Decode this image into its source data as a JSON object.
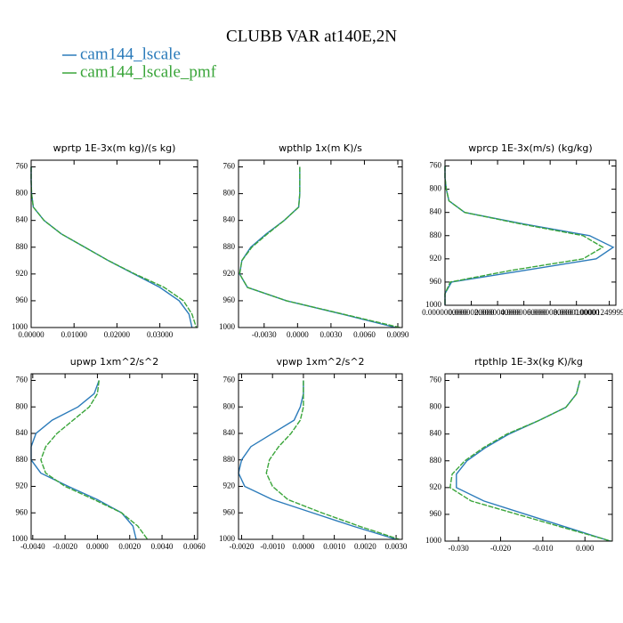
{
  "title": "CLUBB VAR at140E,2N",
  "chart_data": [
    {
      "type": "line",
      "title": "wprtp  1E-3x(m kg)/(s kg)",
      "y": [
        760,
        780,
        800,
        820,
        840,
        860,
        880,
        900,
        920,
        940,
        960,
        980,
        1000
      ],
      "series": [
        {
          "name": "cam144_lscale",
          "color": "#2b7bba",
          "values": [
            0,
            0,
            0.0001,
            0.0005,
            0.003,
            0.007,
            0.0125,
            0.018,
            0.024,
            0.03,
            0.0345,
            0.0368,
            0.0375
          ]
        },
        {
          "name": "cam144_lscale_pmf",
          "color": "#3aa53a",
          "values": [
            0,
            0,
            0.0001,
            0.0005,
            0.003,
            0.007,
            0.0125,
            0.018,
            0.0242,
            0.031,
            0.0355,
            0.0375,
            0.0385
          ]
        }
      ],
      "xlim": [
        0,
        0.0388
      ],
      "ylim": [
        1000,
        750
      ],
      "xticks": [
        {
          "value": 0,
          "label": "0.00000"
        },
        {
          "value": 0.01,
          "label": "0.01000"
        },
        {
          "value": 0.02,
          "label": "0.02000"
        },
        {
          "value": 0.03,
          "label": "0.03000"
        }
      ],
      "yticks": [
        760,
        800,
        840,
        880,
        920,
        960,
        1000
      ]
    },
    {
      "type": "line",
      "title": "wpthlp  1x(m K)/s",
      "y": [
        760,
        780,
        800,
        820,
        840,
        860,
        880,
        900,
        920,
        940,
        960,
        980,
        1000
      ],
      "series": [
        {
          "name": "cam144_lscale",
          "color": "#2b7bba",
          "values": [
            0.0002,
            0.0002,
            0.0002,
            0.0001,
            -0.0012,
            -0.0028,
            -0.0042,
            -0.005,
            -0.0052,
            -0.0045,
            -0.001,
            0.004,
            0.0088
          ]
        },
        {
          "name": "cam144_lscale_pmf",
          "color": "#3aa53a",
          "values": [
            0.0002,
            0.0002,
            0.0002,
            0.0001,
            -0.0012,
            -0.0027,
            -0.0041,
            -0.005,
            -0.0052,
            -0.0045,
            -0.001,
            0.0041,
            0.0092
          ]
        }
      ],
      "xlim": [
        -0.0053,
        0.0094
      ],
      "ylim": [
        1000,
        750
      ],
      "xticks": [
        {
          "value": -0.003,
          "label": "-0.0030"
        },
        {
          "value": 0,
          "label": "0.0000"
        },
        {
          "value": 0.003,
          "label": "0.0030"
        },
        {
          "value": 0.006,
          "label": "0.0060"
        },
        {
          "value": 0.009,
          "label": "0.0090"
        }
      ],
      "yticks": [
        760,
        800,
        840,
        880,
        920,
        960,
        1000
      ]
    },
    {
      "type": "line",
      "title": "wprcp  1E-3x(m/s) (kg/kg)",
      "y": [
        760,
        780,
        800,
        820,
        840,
        860,
        880,
        900,
        920,
        940,
        960,
        980,
        1000
      ],
      "series": [
        {
          "name": "cam144_lscale",
          "color": "#2b7bba",
          "values": [
            0,
            0,
            1e-07,
            3e-07,
            1.5e-06,
            6e-06,
            1.1e-05,
            1.28e-05,
            1.15e-05,
            6e-06,
            5e-07,
            0,
            0
          ]
        },
        {
          "name": "cam144_lscale_pmf",
          "color": "#3aa53a",
          "values": [
            0,
            0,
            1e-07,
            3e-07,
            1.5e-06,
            5.8e-06,
            1.05e-05,
            1.2e-05,
            1.05e-05,
            5e-06,
            4e-07,
            0,
            0
          ]
        }
      ],
      "xlim": [
        0,
        1.3e-05
      ],
      "ylim": [
        1000,
        750
      ],
      "xticks": [
        {
          "value": 0,
          "label": "0.0000000000"
        },
        {
          "value": 2e-06,
          "label": "0.0000020000"
        },
        {
          "value": 4e-06,
          "label": "0.0000040000"
        },
        {
          "value": 6e-06,
          "label": "0.0000060000"
        },
        {
          "value": 8e-06,
          "label": "0.0000080000"
        },
        {
          "value": 1e-05,
          "label": "0.0000100000"
        },
        {
          "value": 1.25e-05,
          "label": "0.0000124999999000"
        }
      ],
      "yticks": [
        760,
        800,
        840,
        880,
        920,
        960,
        1000
      ]
    },
    {
      "type": "line",
      "title": "upwp  1xm^2/s^2",
      "y": [
        760,
        780,
        800,
        820,
        840,
        860,
        880,
        900,
        920,
        940,
        960,
        980,
        1000
      ],
      "series": [
        {
          "name": "cam144_lscale",
          "color": "#2b7bba",
          "values": [
            0.0001,
            -0.0002,
            -0.0012,
            -0.0028,
            -0.0038,
            -0.0041,
            -0.0041,
            -0.0035,
            -0.0018,
            0,
            0.0015,
            0.0022,
            0.0024
          ]
        },
        {
          "name": "cam144_lscale_pmf",
          "color": "#3aa53a",
          "values": [
            0.0001,
            0,
            -0.0005,
            -0.0015,
            -0.0025,
            -0.0032,
            -0.0035,
            -0.0032,
            -0.002,
            -0.0002,
            0.0015,
            0.0025,
            0.0031
          ]
        }
      ],
      "xlim": [
        -0.0041,
        0.0062
      ],
      "ylim": [
        1000,
        750
      ],
      "xticks": [
        {
          "value": -0.004,
          "label": "-0.0040"
        },
        {
          "value": -0.002,
          "label": "-0.0020"
        },
        {
          "value": 0,
          "label": "0.0000"
        },
        {
          "value": 0.002,
          "label": "0.0020"
        },
        {
          "value": 0.004,
          "label": "0.0040"
        },
        {
          "value": 0.006,
          "label": "0.0060"
        }
      ],
      "yticks": [
        760,
        800,
        840,
        880,
        920,
        960,
        1000
      ]
    },
    {
      "type": "line",
      "title": "vpwp  1xm^2/s^2",
      "y": [
        760,
        780,
        800,
        820,
        840,
        860,
        880,
        900,
        920,
        940,
        960,
        980,
        1000
      ],
      "series": [
        {
          "name": "cam144_lscale",
          "color": "#2b7bba",
          "values": [
            0,
            0,
            -0.0001,
            -0.0003,
            -0.001,
            -0.0017,
            -0.002,
            -0.0021,
            -0.0019,
            -0.001,
            0.0003,
            0.0016,
            0.003
          ]
        },
        {
          "name": "cam144_lscale_pmf",
          "color": "#3aa53a",
          "values": [
            0,
            0,
            0,
            -0.0001,
            -0.0004,
            -0.0008,
            -0.0011,
            -0.0012,
            -0.001,
            -0.0005,
            0.0006,
            0.0018,
            0.0031
          ]
        }
      ],
      "xlim": [
        -0.0021,
        0.0032
      ],
      "ylim": [
        1000,
        750
      ],
      "xticks": [
        {
          "value": -0.002,
          "label": "-0.0020"
        },
        {
          "value": -0.001,
          "label": "-0.0010"
        },
        {
          "value": 0,
          "label": "0.0000"
        },
        {
          "value": 0.001,
          "label": "0.0010"
        },
        {
          "value": 0.002,
          "label": "0.0020"
        },
        {
          "value": 0.003,
          "label": "0.0030"
        }
      ],
      "yticks": [
        760,
        800,
        840,
        880,
        920,
        960,
        1000
      ]
    },
    {
      "type": "line",
      "title": "rtpthlp  1E-3x(kg K)/kg",
      "y": [
        760,
        780,
        800,
        820,
        840,
        860,
        880,
        900,
        920,
        940,
        960,
        980,
        1000
      ],
      "series": [
        {
          "name": "cam144_lscale",
          "color": "#2b7bba",
          "values": [
            -0.0012,
            -0.002,
            -0.0045,
            -0.011,
            -0.018,
            -0.0235,
            -0.028,
            -0.0305,
            -0.0305,
            -0.024,
            -0.014,
            -0.004,
            0.006
          ]
        },
        {
          "name": "cam144_lscale_pmf",
          "color": "#3aa53a",
          "values": [
            -0.0012,
            -0.002,
            -0.0045,
            -0.011,
            -0.0185,
            -0.024,
            -0.0285,
            -0.0315,
            -0.032,
            -0.027,
            -0.016,
            -0.005,
            0.0062
          ]
        }
      ],
      "xlim": [
        -0.0332,
        0.0065
      ],
      "ylim": [
        1000,
        750
      ],
      "xticks": [
        {
          "value": -0.03,
          "label": "-0.030"
        },
        {
          "value": -0.02,
          "label": "-0.020"
        },
        {
          "value": -0.01,
          "label": "-0.010"
        },
        {
          "value": 0,
          "label": "0.000"
        }
      ],
      "yticks": [
        760,
        800,
        840,
        880,
        920,
        960,
        1000
      ]
    }
  ]
}
